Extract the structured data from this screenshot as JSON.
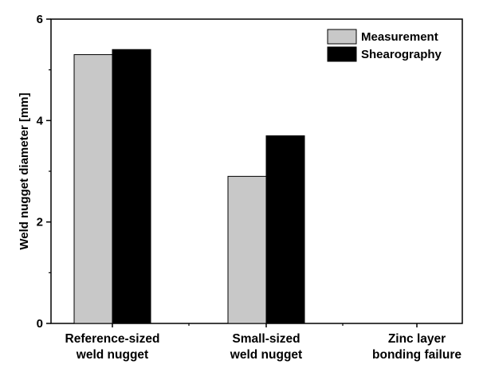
{
  "chart_data": {
    "type": "bar",
    "categories": [
      [
        "Reference-sized",
        "weld nugget"
      ],
      [
        "Small-sized",
        "weld nugget"
      ],
      [
        "Zinc layer",
        "bonding failure"
      ]
    ],
    "series": [
      {
        "name": "Measurement",
        "values": [
          5.3,
          2.9,
          null
        ],
        "color": "#c8c8c8"
      },
      {
        "name": "Shearography",
        "values": [
          5.4,
          3.7,
          null
        ],
        "color": "#000000"
      }
    ],
    "ylabel": "Weld nugget diameter [mm]",
    "xlabel": "",
    "ylim": [
      0,
      6
    ],
    "yticks": [
      0,
      2,
      4,
      6
    ],
    "legend_position": "top-right",
    "grid": false
  }
}
